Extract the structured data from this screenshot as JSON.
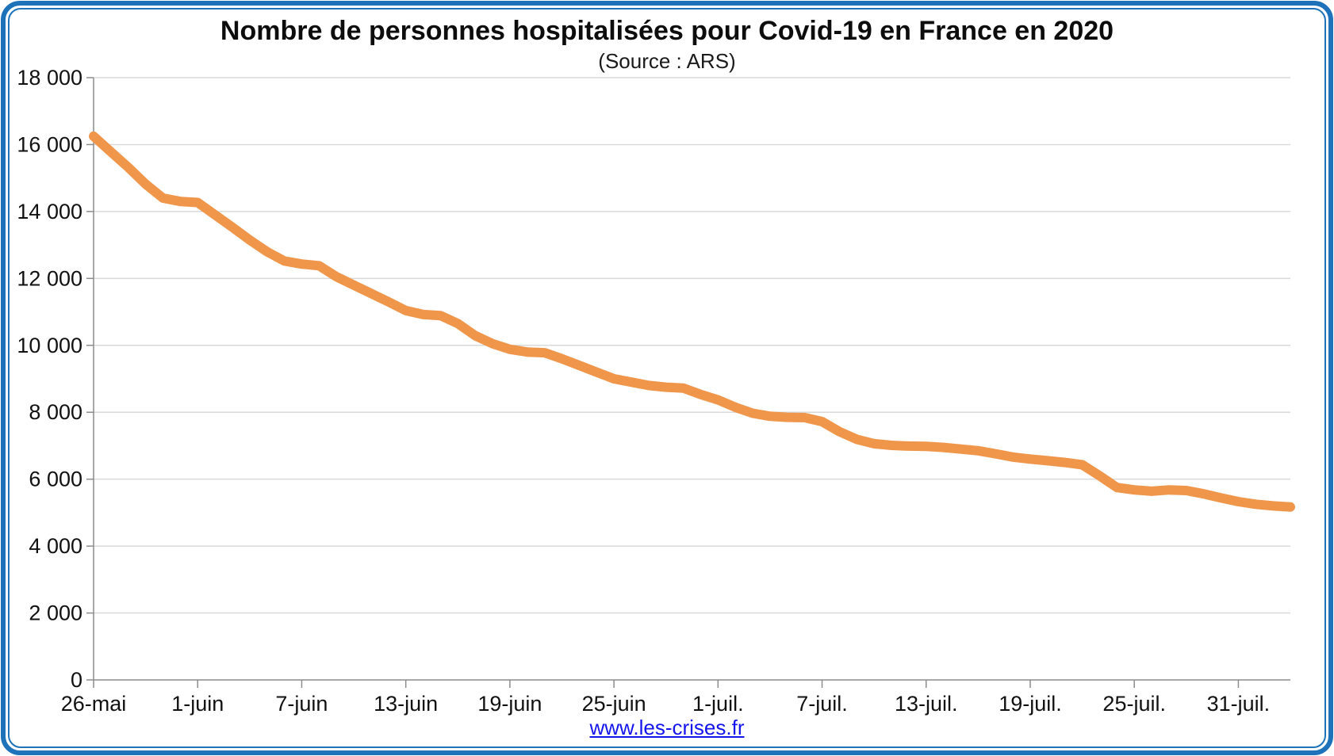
{
  "header": {
    "title": "Nombre de personnes hospitalisées pour Covid-19 en France en 2020",
    "subtitle": "(Source : ARS)"
  },
  "footer": {
    "link_text": "www.les-crises.fr",
    "link_color": "#1414EE"
  },
  "frame": {
    "border_color": "#1D72BA",
    "background_color": "#FFFFFF"
  },
  "chart_data": {
    "type": "line",
    "title": "Nombre de personnes hospitalisées pour Covid-19 en France en 2020",
    "subtitle": "(Source : ARS)",
    "xlabel": "",
    "ylabel": "",
    "ylim": [
      0,
      18000
    ],
    "grid": true,
    "legend": false,
    "colors": {
      "line": "#F0964B",
      "gridline": "#D9D9D9",
      "axis": "#8C8C8C",
      "tick_text": "#111111"
    },
    "x_axis": {
      "ticks": [
        {
          "day": 0,
          "label": "26-mai"
        },
        {
          "day": 6,
          "label": "1-juin"
        },
        {
          "day": 12,
          "label": "7-juin"
        },
        {
          "day": 18,
          "label": "13-juin"
        },
        {
          "day": 24,
          "label": "19-juin"
        },
        {
          "day": 30,
          "label": "25-juin"
        },
        {
          "day": 36,
          "label": "1-juil."
        },
        {
          "day": 42,
          "label": "7-juil."
        },
        {
          "day": 48,
          "label": "13-juil."
        },
        {
          "day": 54,
          "label": "19-juil."
        },
        {
          "day": 60,
          "label": "25-juil."
        },
        {
          "day": 66,
          "label": "31-juil."
        }
      ]
    },
    "y_axis": {
      "ticks": [
        {
          "value": 0,
          "label": "0"
        },
        {
          "value": 2000,
          "label": "2 000"
        },
        {
          "value": 4000,
          "label": "4 000"
        },
        {
          "value": 6000,
          "label": "6 000"
        },
        {
          "value": 8000,
          "label": "8 000"
        },
        {
          "value": 10000,
          "label": "10 000"
        },
        {
          "value": 12000,
          "label": "12 000"
        },
        {
          "value": 14000,
          "label": "14 000"
        },
        {
          "value": 16000,
          "label": "16 000"
        },
        {
          "value": 18000,
          "label": "18 000"
        }
      ]
    },
    "series": [
      {
        "name": "Personnes hospitalisées",
        "start_label": "26-mai",
        "interval": "daily",
        "color": "#F0964B",
        "values": [
          16250,
          15780,
          15320,
          14820,
          14400,
          14300,
          14270,
          13900,
          13530,
          13150,
          12800,
          12520,
          12430,
          12380,
          12050,
          11800,
          11550,
          11300,
          11040,
          10920,
          10890,
          10650,
          10290,
          10050,
          9880,
          9800,
          9780,
          9600,
          9400,
          9200,
          9000,
          8900,
          8800,
          8750,
          8720,
          8530,
          8370,
          8150,
          7970,
          7880,
          7850,
          7840,
          7720,
          7420,
          7190,
          7060,
          7010,
          6990,
          6980,
          6950,
          6900,
          6850,
          6760,
          6660,
          6600,
          6550,
          6500,
          6430,
          6100,
          5750,
          5680,
          5640,
          5680,
          5660,
          5560,
          5440,
          5330,
          5250,
          5200,
          5170
        ]
      }
    ]
  }
}
